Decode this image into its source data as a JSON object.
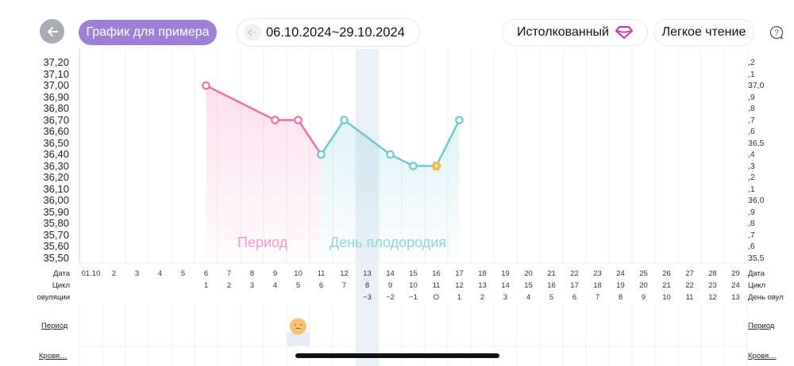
{
  "header": {
    "back_icon": "arrow-left-icon",
    "sample_button": "График для примера",
    "date_range": "06.10.2024~29.10.2024",
    "date_prev_icon": "chevron-left-dotted-icon",
    "interpreted_button": "Истолкованный",
    "interpreted_icon": "diamond-icon",
    "easy_read_button": "Легкое чтение",
    "help_icon": "help-bubble-icon"
  },
  "colors": {
    "accent_purple": "#9d7fd8",
    "period_pink": "#ee6fa9",
    "fertile_teal": "#6cc9d3",
    "ovulation_orange": "#f7b955",
    "ovulation_column": "#eaf0f7"
  },
  "y_axis_left": [
    "37,20",
    "37,10",
    "37,00",
    "36,90",
    "36,80",
    "36,70",
    "36,60",
    "36,50",
    "36,40",
    "36,30",
    "36,20",
    "36,10",
    "36,00",
    "35,90",
    "35,80",
    "35,70",
    "35,60",
    "35,50"
  ],
  "y_axis_right": [
    ",2",
    ",1",
    "37,0",
    ",9",
    ",8",
    ",7",
    ",6",
    "36,5",
    ",4",
    ",3",
    ",2",
    ",1",
    "36,0",
    ",9",
    ",8",
    ",7",
    ",6",
    "35,5"
  ],
  "rows": {
    "date_label": "Дата",
    "cycle_label": "Цикл",
    "ovulation_label_left": "овуляции",
    "ovulation_label_right": "День овул",
    "dates": [
      "01.10",
      "2",
      "3",
      "4",
      "5",
      "6",
      "7",
      "8",
      "9",
      "10",
      "11",
      "12",
      "13",
      "14",
      "15",
      "16",
      "17",
      "18",
      "19",
      "20",
      "21",
      "22",
      "23",
      "24",
      "25",
      "26",
      "27",
      "28",
      "29"
    ],
    "cycle": [
      "",
      "",
      "",
      "",
      "",
      "1",
      "2",
      "3",
      "4",
      "5",
      "6",
      "7",
      "8",
      "9",
      "10",
      "11",
      "12",
      "13",
      "14",
      "15",
      "16",
      "17",
      "18",
      "19",
      "20",
      "21",
      "22",
      "23",
      "24"
    ],
    "ovulation_day": [
      "",
      "",
      "",
      "",
      "",
      "",
      "",
      "",
      "",
      "",
      "",
      "",
      "−3",
      "−2",
      "−1",
      "О",
      "1",
      "2",
      "3",
      "4",
      "5",
      "6",
      "7",
      "8",
      "9",
      "10",
      "11",
      "12",
      "13"
    ]
  },
  "phases": {
    "period_label": "Период",
    "fertile_label": "День плодородия"
  },
  "events": {
    "period_label": "Период",
    "bleeding_label": "Кровя…",
    "mood_icon": "neutral-face-icon"
  },
  "chart_data": {
    "type": "line",
    "title": "",
    "xlabel": "Дата",
    "ylabel": "",
    "ylim": [
      35.5,
      37.3
    ],
    "grid": true,
    "x": [
      "6",
      "9",
      "10",
      "11",
      "12",
      "14",
      "15",
      "16",
      "17"
    ],
    "series": [
      {
        "name": "Период",
        "color": "#ee6fa9",
        "points": [
          {
            "day": 6,
            "value": 37.0
          },
          {
            "day": 9,
            "value": 36.7
          },
          {
            "day": 10,
            "value": 36.7
          },
          {
            "day": 11,
            "value": 36.4
          }
        ]
      },
      {
        "name": "День плодородия",
        "color": "#6cc9d3",
        "points": [
          {
            "day": 11,
            "value": 36.4
          },
          {
            "day": 12,
            "value": 36.7
          },
          {
            "day": 14,
            "value": 36.4
          },
          {
            "day": 15,
            "value": 36.3
          },
          {
            "day": 16,
            "value": 36.3
          },
          {
            "day": 17,
            "value": 36.7
          }
        ]
      }
    ],
    "annotations": [
      {
        "day": 16,
        "marker": "ovulation-flower",
        "value": 36.3
      },
      {
        "day": 13,
        "highlight": "ovulation-column"
      }
    ]
  }
}
